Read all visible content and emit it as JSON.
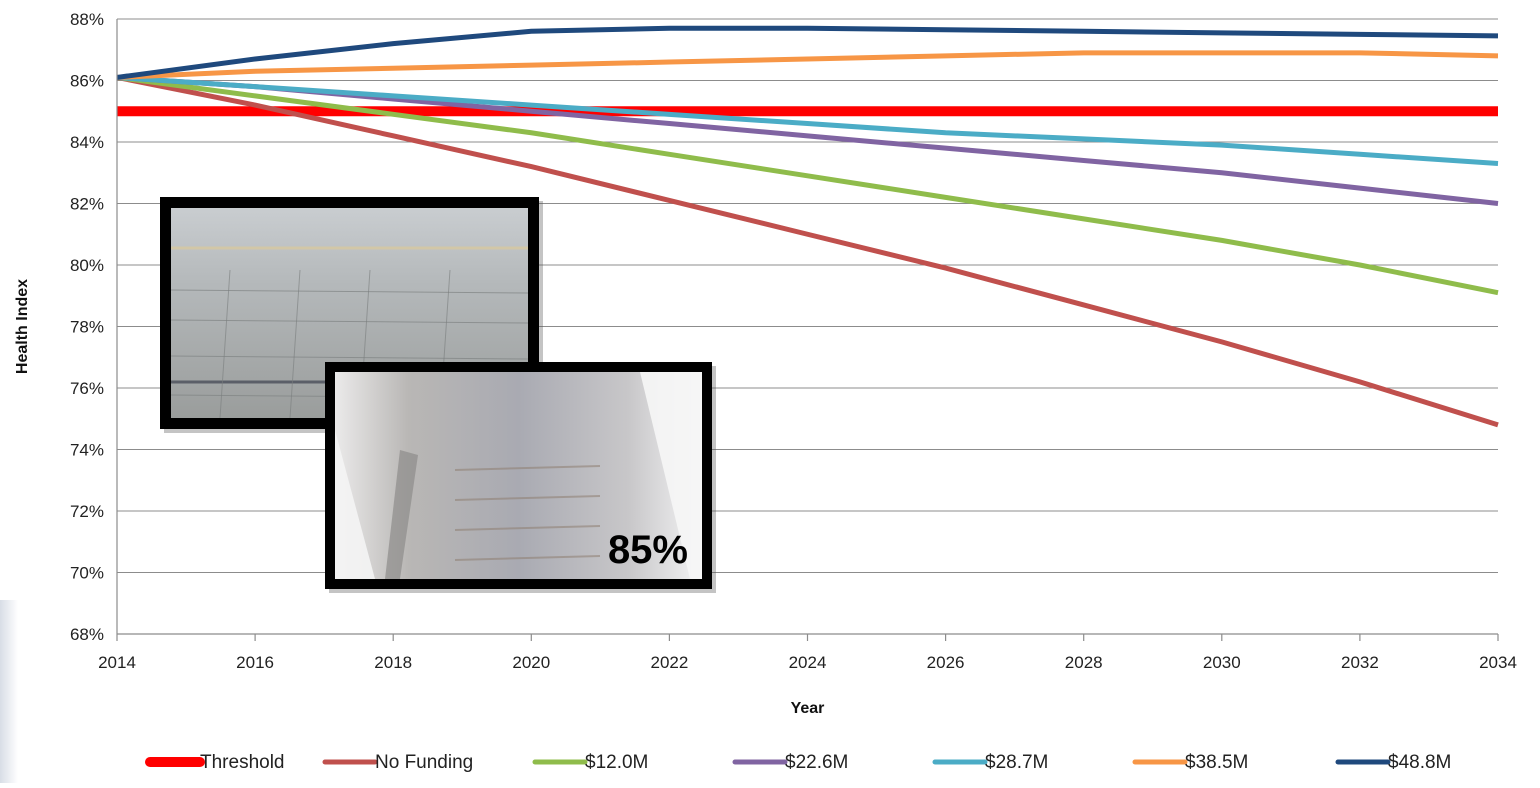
{
  "chart_data": {
    "type": "line",
    "xlabel": "Year",
    "ylabel": "Health Index",
    "x_ticks": [
      "2014",
      "2016",
      "2018",
      "2020",
      "2022",
      "2024",
      "2026",
      "2028",
      "2030",
      "2032",
      "2034"
    ],
    "y_ticks": [
      "68%",
      "70%",
      "72%",
      "74%",
      "76%",
      "78%",
      "80%",
      "82%",
      "84%",
      "86%",
      "88%"
    ],
    "xlim": [
      2014,
      2034
    ],
    "ylim": [
      68,
      88
    ],
    "grid": "horizontal",
    "legend_position": "bottom",
    "inset_photo_label": "85%",
    "series": [
      {
        "name": "Threshold",
        "color": "#ff0000",
        "x": [
          2014,
          2034
        ],
        "y": [
          85,
          85
        ]
      },
      {
        "name": "No Funding",
        "color": "#c0504d",
        "x": [
          2014,
          2016,
          2018,
          2020,
          2022,
          2024,
          2026,
          2028,
          2030,
          2032,
          2034
        ],
        "y": [
          86.1,
          85.2,
          84.2,
          83.2,
          82.1,
          81.0,
          79.9,
          78.7,
          77.5,
          76.2,
          74.8
        ]
      },
      {
        "name": "$12.0M",
        "color": "#8fbc4b",
        "x": [
          2014,
          2016,
          2018,
          2020,
          2022,
          2024,
          2026,
          2028,
          2030,
          2032,
          2034
        ],
        "y": [
          86.1,
          85.5,
          84.9,
          84.3,
          83.6,
          82.9,
          82.2,
          81.5,
          80.8,
          80.0,
          79.1
        ]
      },
      {
        "name": "$22.6M",
        "color": "#8064a2",
        "x": [
          2014,
          2016,
          2018,
          2020,
          2022,
          2024,
          2026,
          2028,
          2030,
          2032,
          2034
        ],
        "y": [
          86.1,
          85.8,
          85.4,
          85.0,
          84.6,
          84.2,
          83.8,
          83.4,
          83.0,
          82.5,
          82.0
        ]
      },
      {
        "name": "$28.7M",
        "color": "#4bacc6",
        "x": [
          2014,
          2016,
          2018,
          2020,
          2022,
          2024,
          2026,
          2028,
          2030,
          2032,
          2034
        ],
        "y": [
          86.1,
          85.8,
          85.5,
          85.2,
          84.9,
          84.6,
          84.3,
          84.1,
          83.9,
          83.6,
          83.3
        ]
      },
      {
        "name": "$38.5M",
        "color": "#f79646",
        "x": [
          2014,
          2016,
          2018,
          2020,
          2022,
          2024,
          2026,
          2028,
          2030,
          2032,
          2034
        ],
        "y": [
          86.1,
          86.3,
          86.4,
          86.5,
          86.6,
          86.7,
          86.8,
          86.9,
          86.9,
          86.9,
          86.8
        ]
      },
      {
        "name": "$48.8M",
        "color": "#1f497d",
        "x": [
          2014,
          2016,
          2018,
          2020,
          2022,
          2024,
          2026,
          2028,
          2030,
          2032,
          2034
        ],
        "y": [
          86.1,
          86.7,
          87.2,
          87.6,
          87.7,
          87.7,
          87.65,
          87.6,
          87.55,
          87.5,
          87.45
        ]
      }
    ]
  }
}
